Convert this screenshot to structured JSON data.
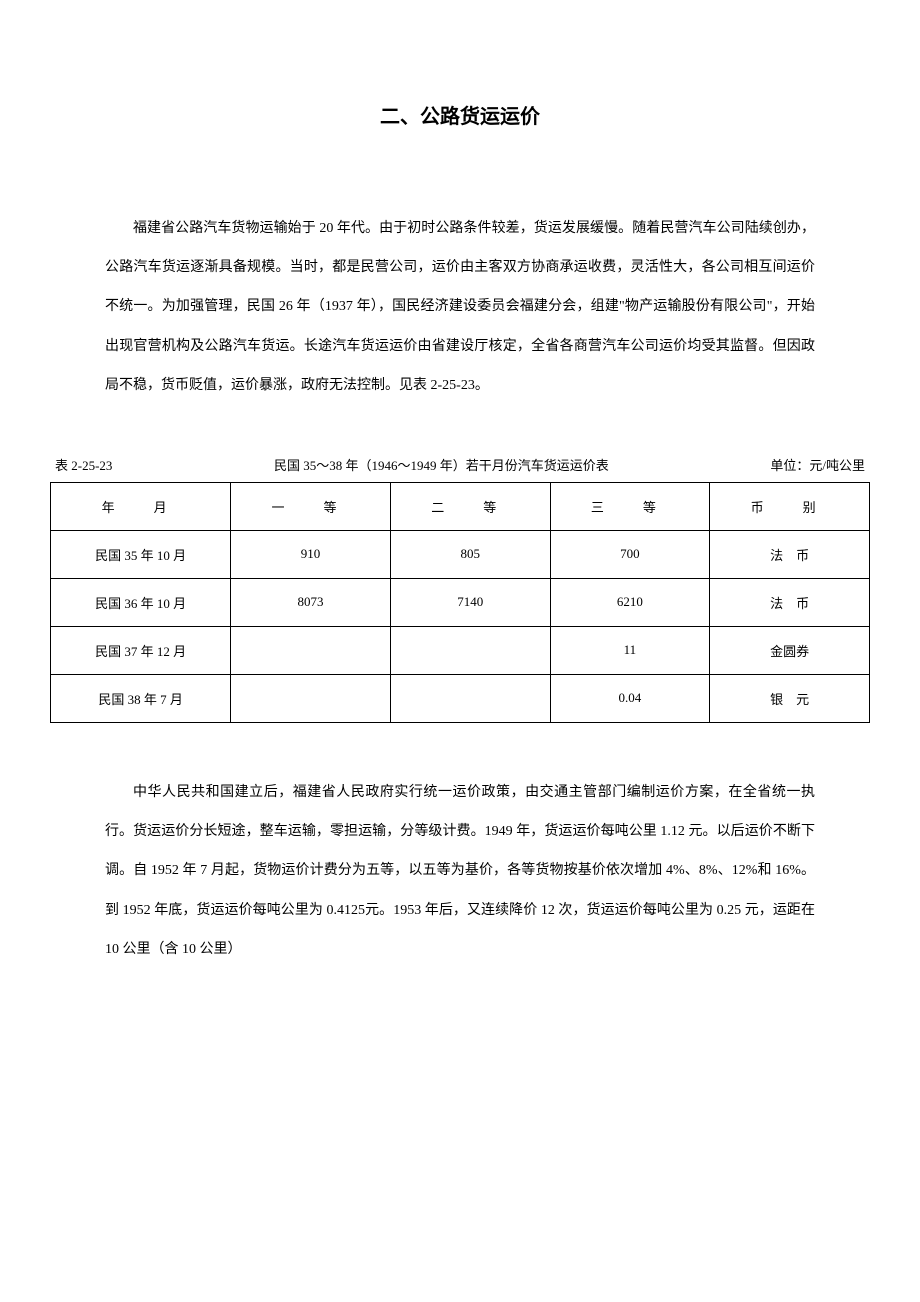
{
  "title": "二、公路货运运价",
  "paragraph1": "福建省公路汽车货物运输始于 20 年代。由于初时公路条件较差，货运发展缓慢。随着民营汽车公司陆续创办，公路汽车货运逐渐具备规模。当时，都是民营公司，运价由主客双方协商承运收费，灵活性大，各公司相互间运价不统一。为加强管理，民国 26 年（1937 年），国民经济建设委员会福建分会，组建\"物产运输股份有限公司\"，开始出现官营机构及公路汽车货运。长途汽车货运运价由省建设厅核定，全省各商营汽车公司运价均受其监督。但因政局不稳，货币贬值，运价暴涨，政府无法控制。见表 2-25-23。",
  "table": {
    "label": "表 2-25-23",
    "title": "民国 35～38 年（1946～1949 年）若干月份汽车货运运价表",
    "unit": "单位：元/吨公里",
    "columns": [
      "年　月",
      "一　等",
      "二　等",
      "三　等",
      "币　别"
    ],
    "rows": [
      [
        "民国 35 年 10 月",
        "910",
        "805",
        "700",
        "法　币"
      ],
      [
        "民国 36 年 10 月",
        "8073",
        "7140",
        "6210",
        "法　币"
      ],
      [
        "民国 37 年 12 月",
        "",
        "",
        "11",
        "金圆券"
      ],
      [
        "民国 38 年 7 月",
        "",
        "",
        "0.04",
        "银　元"
      ]
    ]
  },
  "paragraph2": "中华人民共和国建立后，福建省人民政府实行统一运价政策，由交通主管部门编制运价方案，在全省统一执行。货运运价分长短途，整车运输，零担运输，分等级计费。1949 年，货运运价每吨公里 1.12 元。以后运价不断下调。自 1952 年 7 月起，货物运价计费分为五等，以五等为基价，各等货物按基价依次增加 4%、8%、12%和 16%。到 1952 年底，货运运价每吨公里为 0.4125元。1953 年后，又连续降价 12 次，货运运价每吨公里为 0.25 元，运距在 10 公里（含 10 公里）"
}
